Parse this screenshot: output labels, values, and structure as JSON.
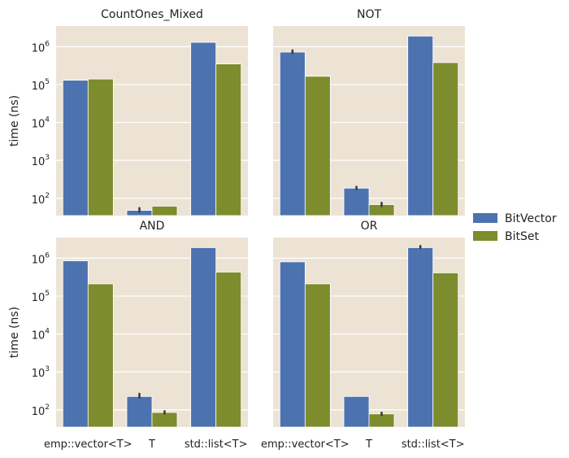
{
  "chart_data": {
    "type": "bar",
    "scale": "log",
    "ylabel": "time (ns)",
    "categories": [
      "emp::vector<T>",
      "T",
      "std::list<T>"
    ],
    "ylim": [
      35,
      3500000
    ],
    "yticks": [
      {
        "value": 100,
        "base": "10",
        "exp": "2"
      },
      {
        "value": 1000,
        "base": "10",
        "exp": "3"
      },
      {
        "value": 10000,
        "base": "10",
        "exp": "4"
      },
      {
        "value": 100000,
        "base": "10",
        "exp": "5"
      },
      {
        "value": 1000000,
        "base": "10",
        "exp": "6"
      }
    ],
    "legend": {
      "position": "right",
      "entries": [
        "BitVector",
        "BitSet"
      ]
    },
    "colors": {
      "BitVector": "#4c72b0",
      "BitSet": "#7d8c2d",
      "panel_bg": "#ede3d5",
      "grid": "#ffffff"
    },
    "panels": [
      {
        "title": "CountOnes_Mixed",
        "series": [
          {
            "name": "BitVector",
            "values": [
              130000,
              48,
              1300000
            ]
          },
          {
            "name": "BitSet",
            "values": [
              140000,
              62,
              350000
            ]
          }
        ],
        "error_bars": [
          {
            "series": "BitVector",
            "category": "T",
            "low": 44,
            "high": 55
          }
        ]
      },
      {
        "title": "NOT",
        "series": [
          {
            "name": "BitVector",
            "values": [
              720000,
              185,
              1900000
            ]
          },
          {
            "name": "BitSet",
            "values": [
              165000,
              68,
              380000
            ]
          }
        ],
        "error_bars": [
          {
            "series": "BitVector",
            "category": "emp::vector<T>",
            "low": 680000,
            "high": 800000
          },
          {
            "series": "BitVector",
            "category": "T",
            "low": 175,
            "high": 200
          },
          {
            "series": "BitSet",
            "category": "T",
            "low": 62,
            "high": 76
          }
        ]
      },
      {
        "title": "AND",
        "series": [
          {
            "name": "BitVector",
            "values": [
              850000,
              225,
              1900000
            ]
          },
          {
            "name": "BitSet",
            "values": [
              210000,
              85,
              430000
            ]
          }
        ],
        "error_bars": [
          {
            "series": "BitVector",
            "category": "T",
            "low": 210,
            "high": 265
          },
          {
            "series": "BitSet",
            "category": "T",
            "low": 80,
            "high": 92
          }
        ]
      },
      {
        "title": "OR",
        "series": [
          {
            "name": "BitVector",
            "values": [
              800000,
              225,
              1900000
            ]
          },
          {
            "name": "BitSet",
            "values": [
              210000,
              78,
              410000
            ]
          }
        ],
        "error_bars": [
          {
            "series": "BitSet",
            "category": "T",
            "low": 73,
            "high": 84
          },
          {
            "series": "BitVector",
            "category": "std::list<T>",
            "low": 1850000,
            "high": 2100000
          }
        ]
      }
    ]
  }
}
